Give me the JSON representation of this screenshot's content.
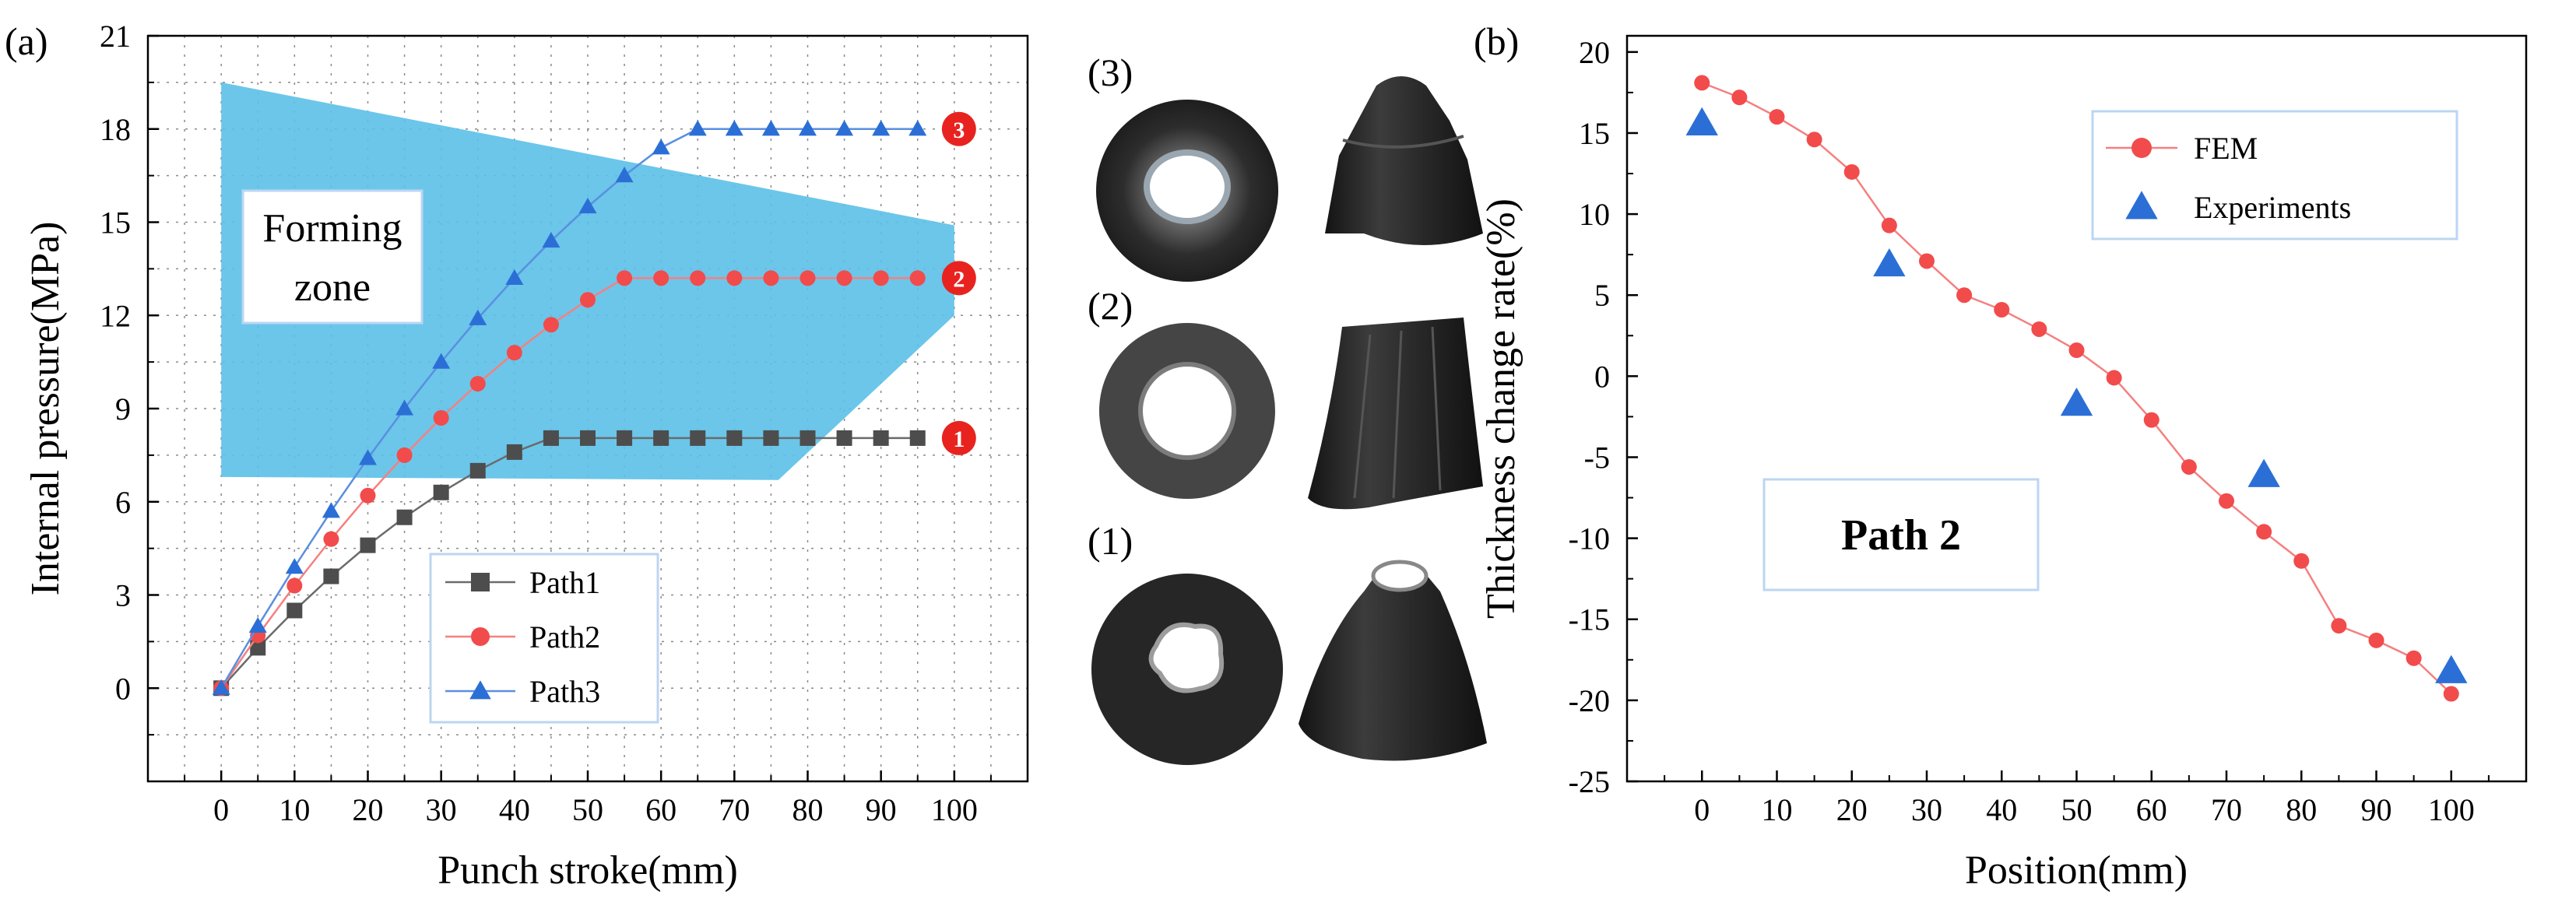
{
  "chart_data": [
    {
      "panel": "(a)",
      "type": "line",
      "xlabel": "Punch stroke(mm)",
      "ylabel": "Internal pressure(MPa)",
      "xlim": [
        -10,
        110
      ],
      "ylim": [
        -3,
        21
      ],
      "xticks": [
        0,
        10,
        20,
        30,
        40,
        50,
        60,
        70,
        80,
        90,
        100
      ],
      "yticks": [
        0,
        3,
        6,
        9,
        12,
        15,
        18,
        21
      ],
      "grid": true,
      "zone": {
        "label_line1": "Forming",
        "label_line2": "zone",
        "color": "#5bc0e8",
        "polygon": [
          [
            0,
            19.5
          ],
          [
            100,
            14.9
          ],
          [
            100,
            12.0
          ],
          [
            76,
            6.7
          ],
          [
            0,
            6.8
          ]
        ]
      },
      "series": [
        {
          "name": "Path1",
          "marker": "square",
          "color": "#4d4d4d",
          "line_color": "#6b6b6b",
          "x": [
            0,
            5,
            10,
            15,
            20,
            25,
            30,
            35,
            40,
            45,
            50,
            55,
            60,
            65,
            70,
            75,
            80,
            85,
            90,
            95
          ],
          "y": [
            0,
            1.3,
            2.5,
            3.6,
            4.6,
            5.5,
            6.3,
            7.0,
            7.6,
            8.05,
            8.05,
            8.05,
            8.05,
            8.05,
            8.05,
            8.05,
            8.05,
            8.05,
            8.05,
            8.05
          ]
        },
        {
          "name": "Path2",
          "marker": "circle",
          "color": "#f24b4b",
          "line_color": "#f58080",
          "x": [
            0,
            5,
            10,
            15,
            20,
            25,
            30,
            35,
            40,
            45,
            50,
            55,
            60,
            65,
            70,
            75,
            80,
            85,
            90,
            95
          ],
          "y": [
            0,
            1.7,
            3.3,
            4.8,
            6.2,
            7.5,
            8.7,
            9.8,
            10.8,
            11.7,
            12.5,
            13.2,
            13.2,
            13.2,
            13.2,
            13.2,
            13.2,
            13.2,
            13.2,
            13.2
          ]
        },
        {
          "name": "Path3",
          "marker": "triangle",
          "color": "#2b6fd6",
          "line_color": "#5a8fe0",
          "x": [
            0,
            5,
            10,
            15,
            20,
            25,
            30,
            35,
            40,
            45,
            50,
            55,
            60,
            65,
            70,
            75,
            80,
            85,
            90,
            95
          ],
          "y": [
            0,
            2.0,
            3.9,
            5.7,
            7.4,
            9.0,
            10.5,
            11.9,
            13.2,
            14.4,
            15.5,
            16.5,
            17.4,
            18.0,
            18.0,
            18.0,
            18.0,
            18.0,
            18.0,
            18.0
          ]
        }
      ],
      "end_badges": [
        {
          "text": "1",
          "y": 8.05
        },
        {
          "text": "2",
          "y": 13.2
        },
        {
          "text": "3",
          "y": 18.0
        }
      ],
      "legend_position": "bottom-center"
    },
    {
      "panel": "(b)",
      "type": "scatter",
      "xlabel": "Position(mm)",
      "ylabel": "Thickness change rate(%)",
      "xlim": [
        -10,
        110
      ],
      "ylim": [
        -25,
        21
      ],
      "xticks": [
        0,
        10,
        20,
        30,
        40,
        50,
        60,
        70,
        80,
        90,
        100
      ],
      "yticks": [
        -25,
        -20,
        -15,
        -10,
        -5,
        0,
        5,
        10,
        15,
        20
      ],
      "grid": false,
      "annotation": "Path 2",
      "series": [
        {
          "name": "FEM",
          "marker": "circle",
          "color": "#f24b4b",
          "line_color": "#f58080",
          "x": [
            0,
            5,
            10,
            15,
            20,
            25,
            30,
            35,
            40,
            45,
            50,
            55,
            60,
            65,
            70,
            75,
            80,
            85,
            90,
            95,
            100
          ],
          "y": [
            18.1,
            17.2,
            16.0,
            14.6,
            12.6,
            9.3,
            7.1,
            5.0,
            4.1,
            2.9,
            1.6,
            -0.1,
            -2.7,
            -5.6,
            -7.7,
            -9.6,
            -11.4,
            -15.4,
            -16.3,
            -17.4,
            -19.6
          ]
        },
        {
          "name": "Experiments",
          "marker": "triangle",
          "color": "#2b6fd6",
          "x": [
            0,
            25,
            50,
            75,
            100
          ],
          "y": [
            15.6,
            6.9,
            -1.7,
            -6.1,
            -18.2
          ]
        }
      ],
      "legend_position": "top-center"
    }
  ],
  "photos": [
    {
      "label": "(3)"
    },
    {
      "label": "(2)"
    },
    {
      "label": "(1)"
    }
  ]
}
